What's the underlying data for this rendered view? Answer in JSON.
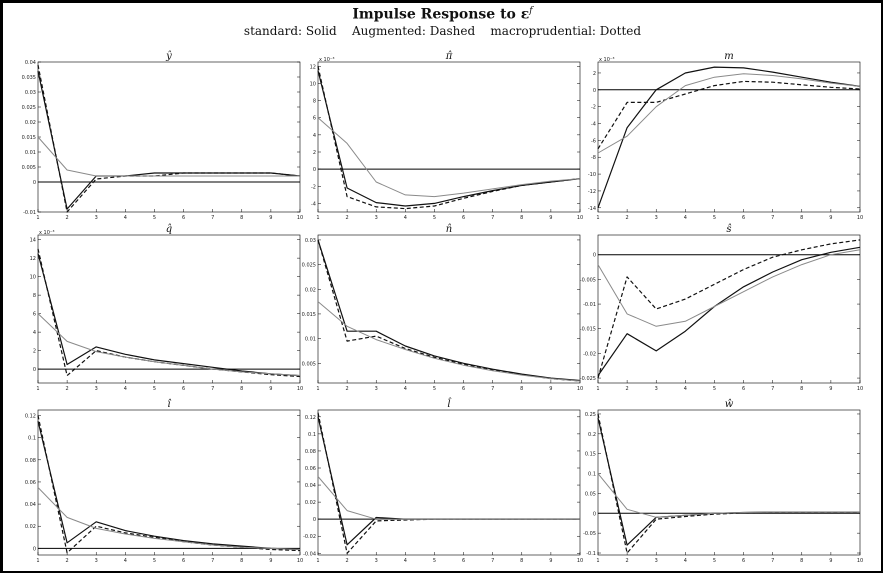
{
  "figure": {
    "title": "Impulse Response to ε",
    "title_superscript": "f",
    "subtitle": "standard: Solid    Augmented: Dashed    macroprudential: Dotted"
  },
  "colors": {
    "standard": "#111111",
    "augmented": "#111111",
    "macroprudential": "#8a8a8a",
    "axis": "#000000"
  },
  "chart_data": [
    {
      "type": "line",
      "title": "ŷ",
      "scale_label": "",
      "x": [
        1,
        2,
        3,
        4,
        5,
        6,
        7,
        8,
        9,
        10
      ],
      "ylim": [
        -0.01,
        0.04
      ],
      "yticks": [
        "-0.01",
        "0",
        "0.005",
        "0.01",
        "0.015",
        "0.02",
        "0.025",
        "0.03",
        "0.035",
        "0.04"
      ],
      "ytick_values": [
        -0.01,
        0,
        0.005,
        0.01,
        0.015,
        0.02,
        0.025,
        0.03,
        0.035,
        0.04
      ],
      "xticks": [
        "1",
        "2",
        "3",
        "4",
        "5",
        "6",
        "7",
        "8",
        "9",
        "10"
      ],
      "series": [
        {
          "style": "solid",
          "values": [
            0.037,
            -0.009,
            0.002,
            0.002,
            0.003,
            0.003,
            0.003,
            0.003,
            0.003,
            0.002
          ]
        },
        {
          "style": "dashed",
          "values": [
            0.039,
            -0.01,
            0.001,
            0.002,
            0.002,
            0.003,
            0.003,
            0.003,
            0.003,
            0.002
          ]
        },
        {
          "style": "dotted",
          "values": [
            0.015,
            0.004,
            0.002,
            0.002,
            0.002,
            0.002,
            0.002,
            0.002,
            0.002,
            0.002
          ]
        }
      ]
    },
    {
      "type": "line",
      "title": "π̂",
      "scale_label": "x 10⁻³",
      "x": [
        1,
        2,
        3,
        4,
        5,
        6,
        7,
        8,
        9,
        10
      ],
      "ylim": [
        -5,
        12.5
      ],
      "yticks": [
        "-4",
        "-2",
        "0",
        "2",
        "4",
        "6",
        "8",
        "10",
        "12"
      ],
      "ytick_values": [
        -4,
        -2,
        0,
        2,
        4,
        6,
        8,
        10,
        12
      ],
      "xticks": [
        "1",
        "2",
        "3",
        "4",
        "5",
        "6",
        "7",
        "8",
        "9",
        "10"
      ],
      "series": [
        {
          "style": "solid",
          "values": [
            11.5,
            -2.2,
            -3.9,
            -4.3,
            -4.0,
            -3.2,
            -2.5,
            -1.9,
            -1.5,
            -1.1
          ]
        },
        {
          "style": "dashed",
          "values": [
            12.0,
            -3.2,
            -4.4,
            -4.6,
            -4.3,
            -3.4,
            -2.6,
            -1.9,
            -1.5,
            -1.1
          ]
        },
        {
          "style": "dotted",
          "values": [
            6.0,
            3.0,
            -1.5,
            -3.0,
            -3.2,
            -2.8,
            -2.3,
            -1.8,
            -1.4,
            -1.1
          ]
        }
      ]
    },
    {
      "type": "line",
      "title": "m",
      "scale_label": "x 10⁻³",
      "x": [
        1,
        2,
        3,
        4,
        5,
        6,
        7,
        8,
        9,
        10
      ],
      "ylim": [
        -14.5,
        3.3
      ],
      "yticks": [
        "-14",
        "-12",
        "-10",
        "-8",
        "-6",
        "-4",
        "-2",
        "0",
        "2"
      ],
      "ytick_values": [
        -14,
        -12,
        -10,
        -8,
        -6,
        -4,
        -2,
        0,
        2
      ],
      "xticks": [
        "1",
        "2",
        "3",
        "4",
        "5",
        "6",
        "7",
        "8",
        "9",
        "10"
      ],
      "series": [
        {
          "style": "solid",
          "values": [
            -14.0,
            -4.5,
            0.0,
            2.0,
            2.7,
            2.6,
            2.1,
            1.5,
            0.9,
            0.4
          ]
        },
        {
          "style": "dashed",
          "values": [
            -7.0,
            -1.5,
            -1.5,
            -0.5,
            0.5,
            1.0,
            0.9,
            0.6,
            0.3,
            0.1
          ]
        },
        {
          "style": "dotted",
          "values": [
            -7.5,
            -5.5,
            -2.0,
            0.5,
            1.5,
            1.9,
            1.7,
            1.3,
            0.8,
            0.4
          ]
        }
      ]
    },
    {
      "type": "line",
      "title": "q̂",
      "scale_label": "x 10⁻³",
      "x": [
        1,
        2,
        3,
        4,
        5,
        6,
        7,
        8,
        9,
        10
      ],
      "ylim": [
        -1.5,
        14.5
      ],
      "yticks": [
        "0",
        "2",
        "4",
        "6",
        "8",
        "10",
        "12",
        "14"
      ],
      "ytick_values": [
        0,
        2,
        4,
        6,
        8,
        10,
        12,
        14
      ],
      "xticks": [
        "1",
        "2",
        "3",
        "4",
        "5",
        "6",
        "7",
        "8",
        "9",
        "10"
      ],
      "series": [
        {
          "style": "solid",
          "values": [
            12.5,
            0.5,
            2.4,
            1.6,
            1.0,
            0.6,
            0.2,
            -0.2,
            -0.5,
            -0.7
          ]
        },
        {
          "style": "dashed",
          "values": [
            13.0,
            -0.7,
            2.0,
            1.3,
            0.8,
            0.4,
            0.0,
            -0.3,
            -0.6,
            -0.8
          ]
        },
        {
          "style": "dotted",
          "values": [
            6.0,
            3.0,
            1.9,
            1.3,
            0.8,
            0.4,
            0.0,
            -0.3,
            -0.5,
            -0.7
          ]
        }
      ]
    },
    {
      "type": "line",
      "title": "n̂",
      "scale_label": "",
      "x": [
        1,
        2,
        3,
        4,
        5,
        6,
        7,
        8,
        9,
        10
      ],
      "ylim": [
        0.001,
        0.031
      ],
      "yticks": [
        "0.005",
        "0.01",
        "0.015",
        "0.02",
        "0.025",
        "0.03"
      ],
      "ytick_values": [
        0.005,
        0.01,
        0.015,
        0.02,
        0.025,
        0.03
      ],
      "xticks": [
        "1",
        "2",
        "3",
        "4",
        "5",
        "6",
        "7",
        "8",
        "9",
        "10"
      ],
      "series": [
        {
          "style": "solid",
          "values": [
            0.03,
            0.0115,
            0.0115,
            0.0085,
            0.0065,
            0.005,
            0.0038,
            0.0028,
            0.002,
            0.0015
          ]
        },
        {
          "style": "dashed",
          "values": [
            0.03,
            0.0095,
            0.0105,
            0.008,
            0.0062,
            0.0048,
            0.0036,
            0.0027,
            0.0019,
            0.0014
          ]
        },
        {
          "style": "dotted",
          "values": [
            0.0175,
            0.0125,
            0.0098,
            0.0078,
            0.006,
            0.0046,
            0.0035,
            0.0026,
            0.0019,
            0.0014
          ]
        }
      ]
    },
    {
      "type": "line",
      "title": "ŝ",
      "scale_label": "",
      "x": [
        1,
        2,
        3,
        4,
        5,
        6,
        7,
        8,
        9,
        10
      ],
      "ylim": [
        -0.026,
        0.004
      ],
      "yticks": [
        "-0.025",
        "-0.02",
        "-0.015",
        "-0.01",
        "-0.005",
        "0"
      ],
      "ytick_values": [
        -0.025,
        -0.02,
        -0.015,
        -0.01,
        -0.005,
        0
      ],
      "xticks": [
        "1",
        "2",
        "3",
        "4",
        "5",
        "6",
        "7",
        "8",
        "9",
        "10"
      ],
      "series": [
        {
          "style": "solid",
          "values": [
            -0.0245,
            -0.016,
            -0.0195,
            -0.0155,
            -0.0105,
            -0.0065,
            -0.0035,
            -0.001,
            0.0005,
            0.0015
          ]
        },
        {
          "style": "dashed",
          "values": [
            -0.025,
            -0.0045,
            -0.011,
            -0.009,
            -0.006,
            -0.003,
            -0.0005,
            0.001,
            0.0022,
            0.003
          ]
        },
        {
          "style": "dotted",
          "values": [
            -0.002,
            -0.012,
            -0.0145,
            -0.0135,
            -0.0105,
            -0.0075,
            -0.0045,
            -0.002,
            0.0,
            0.001
          ]
        }
      ]
    },
    {
      "type": "line",
      "title": "î",
      "scale_label": "",
      "x": [
        1,
        2,
        3,
        4,
        5,
        6,
        7,
        8,
        9,
        10
      ],
      "ylim": [
        -0.006,
        0.125
      ],
      "yticks": [
        "0",
        "0.02",
        "0.04",
        "0.06",
        "0.08",
        "0.1",
        "0.12"
      ],
      "ytick_values": [
        0,
        0.02,
        0.04,
        0.06,
        0.08,
        0.1,
        0.12
      ],
      "xticks": [
        "1",
        "2",
        "3",
        "4",
        "5",
        "6",
        "7",
        "8",
        "9",
        "10"
      ],
      "series": [
        {
          "style": "solid",
          "values": [
            0.115,
            0.005,
            0.024,
            0.016,
            0.011,
            0.007,
            0.004,
            0.002,
            0.0,
            -0.001
          ]
        },
        {
          "style": "dashed",
          "values": [
            0.12,
            -0.004,
            0.02,
            0.014,
            0.01,
            0.006,
            0.003,
            0.001,
            -0.001,
            -0.002
          ]
        },
        {
          "style": "dotted",
          "values": [
            0.055,
            0.028,
            0.018,
            0.013,
            0.009,
            0.006,
            0.003,
            0.001,
            0.0,
            -0.001
          ]
        }
      ]
    },
    {
      "type": "line",
      "title": "l̂",
      "scale_label": "",
      "x": [
        1,
        2,
        3,
        4,
        5,
        6,
        7,
        8,
        9,
        10
      ],
      "ylim": [
        -0.042,
        0.128
      ],
      "yticks": [
        "-0.04",
        "-0.02",
        "0",
        "0.02",
        "0.04",
        "0.06",
        "0.08",
        "0.1",
        "0.12"
      ],
      "ytick_values": [
        -0.04,
        -0.02,
        0,
        0.02,
        0.04,
        0.06,
        0.08,
        0.1,
        0.12
      ],
      "xticks": [
        "1",
        "2",
        "3",
        "4",
        "5",
        "6",
        "7",
        "8",
        "9",
        "10"
      ],
      "series": [
        {
          "style": "solid",
          "values": [
            0.12,
            -0.03,
            0.002,
            0.0,
            0.0,
            0.0,
            0.0,
            0.0,
            0.0,
            0.0
          ]
        },
        {
          "style": "dashed",
          "values": [
            0.125,
            -0.04,
            -0.002,
            -0.001,
            0.0,
            0.0,
            0.0,
            0.0,
            0.0,
            0.0
          ]
        },
        {
          "style": "dotted",
          "values": [
            0.05,
            0.01,
            0.0,
            0.0,
            0.0,
            0.0,
            0.0,
            0.0,
            0.0,
            0.0
          ]
        }
      ]
    },
    {
      "type": "line",
      "title": "ŵ",
      "scale_label": "",
      "x": [
        1,
        2,
        3,
        4,
        5,
        6,
        7,
        8,
        9,
        10
      ],
      "ylim": [
        -0.105,
        0.26
      ],
      "yticks": [
        "-0.1",
        "-0.05",
        "0",
        "0.05",
        "0.1",
        "0.15",
        "0.2",
        "0.25"
      ],
      "ytick_values": [
        -0.1,
        -0.05,
        0,
        0.05,
        0.1,
        0.15,
        0.2,
        0.25
      ],
      "xticks": [
        "1",
        "2",
        "3",
        "4",
        "5",
        "6",
        "7",
        "8",
        "9",
        "10"
      ],
      "series": [
        {
          "style": "solid",
          "values": [
            0.24,
            -0.08,
            -0.01,
            -0.005,
            0.0,
            0.002,
            0.003,
            0.003,
            0.003,
            0.003
          ]
        },
        {
          "style": "dashed",
          "values": [
            0.25,
            -0.1,
            -0.015,
            -0.008,
            -0.002,
            0.001,
            0.002,
            0.002,
            0.002,
            0.002
          ]
        },
        {
          "style": "dotted",
          "values": [
            0.1,
            0.01,
            -0.01,
            -0.005,
            0.0,
            0.002,
            0.003,
            0.003,
            0.003,
            0.003
          ]
        }
      ]
    }
  ]
}
